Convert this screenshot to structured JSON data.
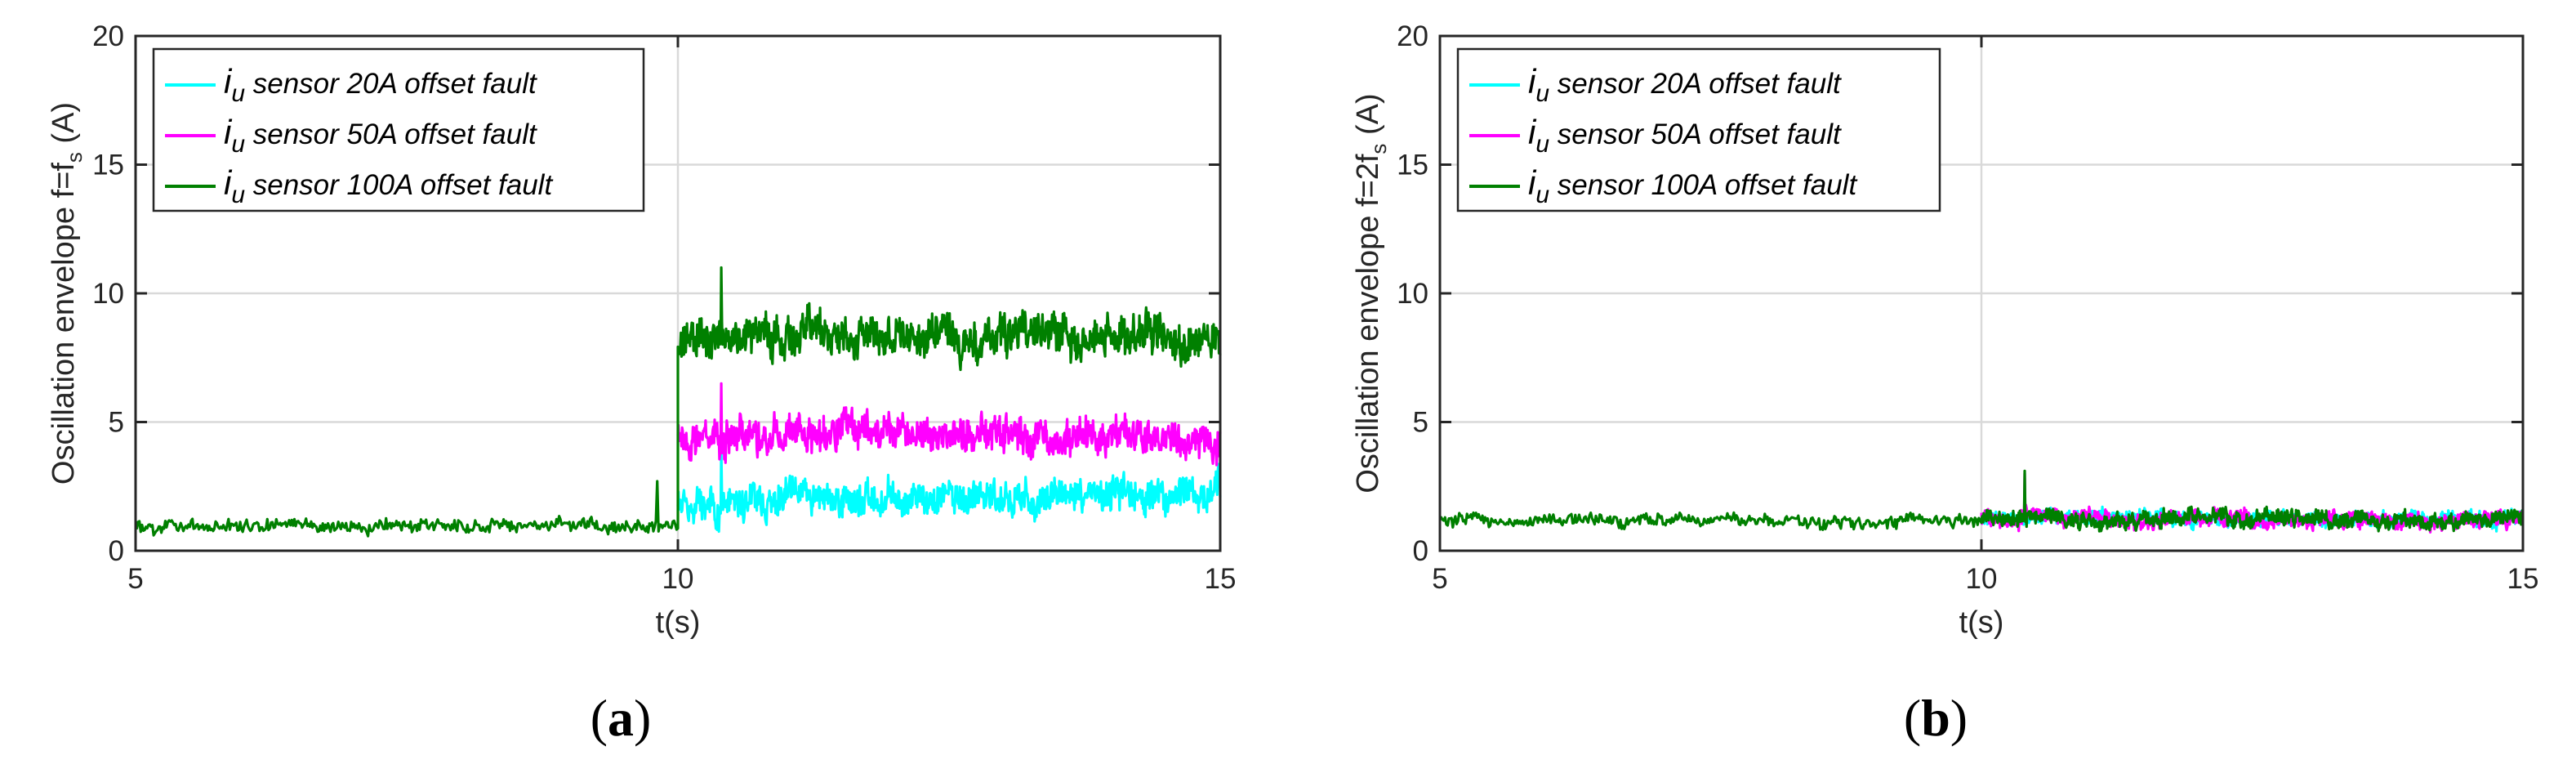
{
  "chart_data": [
    {
      "type": "line",
      "panel": "(a)",
      "caption_letter": "a",
      "ylabel_main": "Oscillation envelope f=f",
      "ylabel_sub": "s",
      "ylabel_unit": " (A)",
      "xlabel": "t(s)",
      "xlim": [
        5,
        15
      ],
      "ylim": [
        0,
        20
      ],
      "xticks": [
        5,
        10,
        15
      ],
      "yticks": [
        0,
        5,
        10,
        15,
        20
      ],
      "grid": true,
      "legend_position": "top-left",
      "fault_time": 10,
      "pre_fault": {
        "mean": 1.0,
        "amplitude": 0.35,
        "spike": {
          "t": 9.8,
          "value": 2.7
        }
      },
      "series": [
        {
          "name": "i_u sensor 20A offset fault",
          "legend_italic_var": "i",
          "legend_sub": "u",
          "legend_rest": " sensor 20A offset fault",
          "color": "#00FFFF",
          "post_fault_mean": 2.0,
          "post_fault_amplitude": 0.9,
          "post_fault_peak": 3.9,
          "post_fault_min": 0.6
        },
        {
          "name": "i_u sensor 50A offset fault",
          "legend_italic_var": "i",
          "legend_sub": "u",
          "legend_rest": " sensor 50A offset fault",
          "color": "#FF00FF",
          "post_fault_mean": 4.5,
          "post_fault_amplitude": 1.0,
          "post_fault_peak": 6.5,
          "post_fault_min": 3.0
        },
        {
          "name": "i_u sensor 100A offset fault",
          "legend_italic_var": "i",
          "legend_sub": "u",
          "legend_rest": " sensor 100A offset fault",
          "color": "#008000",
          "post_fault_mean": 8.3,
          "post_fault_amplitude": 1.1,
          "post_fault_peak": 11.0,
          "post_fault_min": 6.6
        }
      ]
    },
    {
      "type": "line",
      "panel": "(b)",
      "caption_letter": "b",
      "ylabel_main": "Oscillation envelope f=2f",
      "ylabel_sub": "s",
      "ylabel_unit": " (A)",
      "xlabel": "t(s)",
      "xlim": [
        5,
        15
      ],
      "ylim": [
        0,
        20
      ],
      "xticks": [
        5,
        10,
        15
      ],
      "yticks": [
        0,
        5,
        10,
        15,
        20
      ],
      "grid": true,
      "legend_position": "top-left",
      "fault_time": 10,
      "pre_fault": {
        "mean": 1.2,
        "amplitude": 0.35
      },
      "series": [
        {
          "name": "i_u sensor 20A offset fault",
          "legend_italic_var": "i",
          "legend_sub": "u",
          "legend_rest": " sensor 20A offset fault",
          "color": "#00FFFF",
          "post_fault_mean": 1.2,
          "post_fault_amplitude": 0.4,
          "post_fault_peak": 1.9,
          "post_fault_min": 0.6
        },
        {
          "name": "i_u sensor 50A offset fault",
          "legend_italic_var": "i",
          "legend_sub": "u",
          "legend_rest": " sensor 50A offset fault",
          "color": "#FF00FF",
          "post_fault_mean": 1.25,
          "post_fault_amplitude": 0.45,
          "post_fault_peak": 3.0,
          "post_fault_min": 0.6
        },
        {
          "name": "i_u sensor 100A offset fault",
          "legend_italic_var": "i",
          "legend_sub": "u",
          "legend_rest": " sensor 100A offset fault",
          "color": "#008000",
          "post_fault_mean": 1.3,
          "post_fault_amplitude": 0.45,
          "post_fault_peak": 3.1,
          "post_fault_min": 0.6
        }
      ]
    }
  ]
}
